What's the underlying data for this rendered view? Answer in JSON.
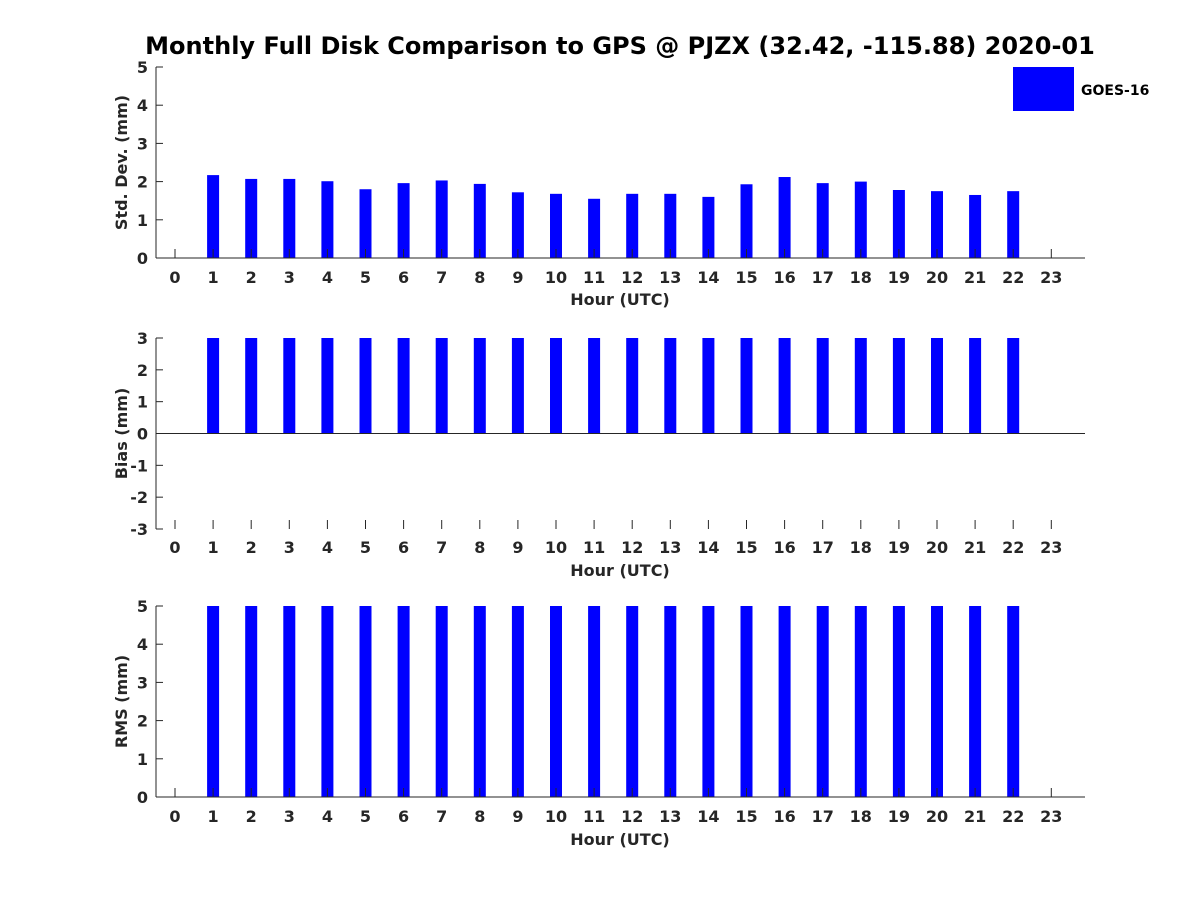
{
  "chart_data": {
    "title": "Monthly Full Disk Comparison to GPS @ PJZX (32.42, -115.88) 2020-01",
    "legend": {
      "label": "GOES-16",
      "color": "#0000ff",
      "placement": "top-right"
    },
    "x_ticks": [
      "0",
      "1",
      "2",
      "3",
      "4",
      "5",
      "6",
      "7",
      "8",
      "9",
      "10",
      "11",
      "12",
      "13",
      "14",
      "15",
      "16",
      "17",
      "18",
      "19",
      "20",
      "21",
      "22",
      "23"
    ],
    "panels": [
      {
        "type": "bar",
        "ylabel": "Std. Dev. (mm)",
        "xlabel": "Hour (UTC)",
        "ylim": [
          0,
          5
        ],
        "y_ticks": [
          "0",
          "1",
          "2",
          "3",
          "4",
          "5"
        ],
        "x": [
          1,
          2,
          3,
          4,
          5,
          6,
          7,
          8,
          9,
          10,
          11,
          12,
          13,
          14,
          15,
          16,
          17,
          18,
          19,
          20,
          21,
          22
        ],
        "values": [
          2.17,
          2.07,
          2.07,
          2.01,
          1.8,
          1.96,
          2.03,
          1.94,
          1.72,
          1.68,
          1.55,
          1.68,
          1.68,
          1.6,
          1.93,
          2.12,
          1.96,
          2.0,
          1.78,
          1.75,
          1.65,
          1.75
        ]
      },
      {
        "type": "bar",
        "ylabel": "Bias (mm)",
        "xlabel": "Hour (UTC)",
        "ylim": [
          -3,
          3
        ],
        "y_ticks": [
          "-3",
          "-2",
          "-1",
          "0",
          "1",
          "2",
          "3"
        ],
        "x": [
          1,
          2,
          3,
          4,
          5,
          6,
          7,
          8,
          9,
          10,
          11,
          12,
          13,
          14,
          15,
          16,
          17,
          18,
          19,
          20,
          21,
          22
        ],
        "values": [
          3,
          3,
          3,
          3,
          3,
          3,
          3,
          3,
          3,
          3,
          3,
          3,
          3,
          3,
          3,
          3,
          3,
          3,
          3,
          3,
          3,
          3
        ]
      },
      {
        "type": "bar",
        "ylabel": "RMS (mm)",
        "xlabel": "Hour (UTC)",
        "ylim": [
          0,
          5
        ],
        "y_ticks": [
          "0",
          "1",
          "2",
          "3",
          "4",
          "5"
        ],
        "x": [
          1,
          2,
          3,
          4,
          5,
          6,
          7,
          8,
          9,
          10,
          11,
          12,
          13,
          14,
          15,
          16,
          17,
          18,
          19,
          20,
          21,
          22
        ],
        "values": [
          5,
          5,
          5,
          5,
          5,
          5,
          5,
          5,
          5,
          5,
          5,
          5,
          5,
          5,
          5,
          5,
          5,
          5,
          5,
          5,
          5,
          5
        ]
      }
    ]
  }
}
